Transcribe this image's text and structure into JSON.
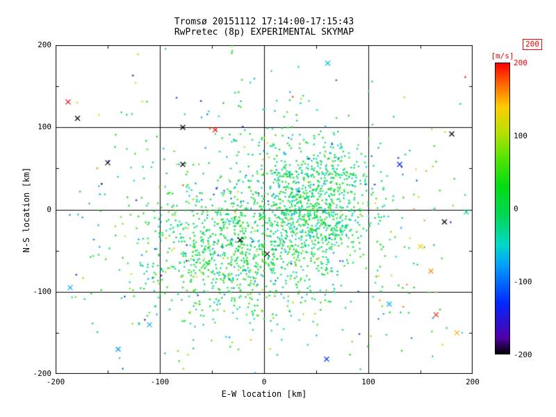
{
  "figure": {
    "title": "Tromsø 20151112 17:14:00-17:15:43",
    "subtitle": "RwPretec (8p) EXPERIMENTAL SKYMAP"
  },
  "chart_data": {
    "type": "scatter",
    "title": "Tromsø 20151112 17:14:00-17:15:43",
    "subtitle": "RwPretec (8p) EXPERIMENTAL SKYMAP",
    "xlabel": "E-W location [km]",
    "ylabel": "N-S location [km]",
    "xlim": [
      -200,
      200
    ],
    "ylim": [
      -200,
      200
    ],
    "x_ticks": [
      -200,
      -100,
      0,
      100,
      200
    ],
    "y_ticks": [
      -200,
      -100,
      0,
      100,
      200
    ],
    "grid_values": [
      -100,
      0,
      100
    ],
    "grid": true,
    "marker": "plus",
    "seed": 20151112,
    "colorbar": {
      "label": "[m/s]",
      "max_badge": "200",
      "min": -200,
      "max": 200,
      "ticks": [
        200,
        100,
        0,
        -100,
        -200
      ],
      "stops": [
        [
          -200,
          "#000000"
        ],
        [
          -178,
          "#5000a8"
        ],
        [
          -130,
          "#0028ff"
        ],
        [
          -80,
          "#009cff"
        ],
        [
          -50,
          "#00d8c8"
        ],
        [
          -10,
          "#00d855"
        ],
        [
          30,
          "#00dc14"
        ],
        [
          70,
          "#55e400"
        ],
        [
          105,
          "#b8e000"
        ],
        [
          140,
          "#ffcc00"
        ],
        [
          170,
          "#ff6a00"
        ],
        [
          200,
          "#ff0000"
        ]
      ]
    },
    "clusters": [
      {
        "cx": 48,
        "cy": 8,
        "sx": 28,
        "sy": 38,
        "count": 900,
        "v_mean": -5,
        "v_sd": 35
      },
      {
        "cx": -35,
        "cy": -52,
        "sx": 42,
        "sy": 38,
        "count": 700,
        "v_mean": 5,
        "v_sd": 40
      },
      {
        "cx": 5,
        "cy": -25,
        "sx": 85,
        "sy": 75,
        "count": 450,
        "v_mean": 0,
        "v_sd": 55
      },
      {
        "cx": 0,
        "cy": -10,
        "sx": 135,
        "sy": 120,
        "count": 280,
        "v_mean": 0,
        "v_sd": 85
      }
    ],
    "outliers": [
      {
        "x": -188,
        "y": 131,
        "v": 200
      },
      {
        "x": -179,
        "y": 111,
        "v": -200
      },
      {
        "x": -78,
        "y": 100,
        "v": -200
      },
      {
        "x": -47,
        "y": 97,
        "v": 190
      },
      {
        "x": -78,
        "y": 55,
        "v": -200
      },
      {
        "x": 61,
        "y": 178,
        "v": -60
      },
      {
        "x": 180,
        "y": 92,
        "v": -200
      },
      {
        "x": 173,
        "y": -15,
        "v": -200
      },
      {
        "x": 165,
        "y": -128,
        "v": 190
      },
      {
        "x": 120,
        "y": -115,
        "v": -70
      },
      {
        "x": -110,
        "y": -140,
        "v": -70
      },
      {
        "x": -186,
        "y": -95,
        "v": -75
      },
      {
        "x": 3,
        "y": -54,
        "v": -200
      },
      {
        "x": -23,
        "y": -37,
        "v": -200
      },
      {
        "x": 150,
        "y": -45,
        "v": 140
      },
      {
        "x": 160,
        "y": -75,
        "v": 165
      },
      {
        "x": 185,
        "y": -150,
        "v": 150
      },
      {
        "x": -140,
        "y": -170,
        "v": -80
      },
      {
        "x": 60,
        "y": -182,
        "v": -120
      },
      {
        "x": 130,
        "y": 55,
        "v": -130
      },
      {
        "x": 194,
        "y": -3,
        "v": -40
      },
      {
        "x": -150,
        "y": 57,
        "v": -200
      }
    ]
  }
}
